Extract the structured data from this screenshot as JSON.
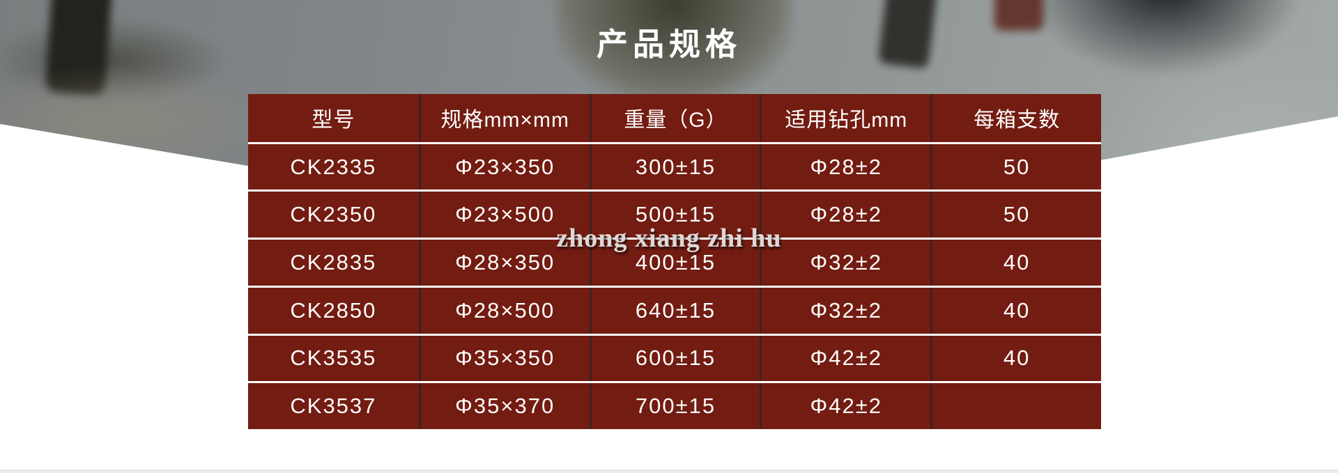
{
  "page": {
    "title": "产品规格",
    "watermark": "zhong xiang zhi hu",
    "colors": {
      "table_cell_red": "#731c11",
      "row_separator": "#ffffff",
      "column_separator": "#2c2622",
      "table_text": "#ffffff",
      "title_text": "#ffffff",
      "watermark_text": "#dcd8d6",
      "lower_background": "#ffffff"
    }
  },
  "table": {
    "header": [
      "型号",
      "规格mm×mm",
      "重量（G）",
      "适用钻孔mm",
      "每箱支数"
    ],
    "rows": [
      [
        "CK2335",
        "Φ23×350",
        "300±15",
        "Φ28±2",
        "50"
      ],
      [
        "CK2350",
        "Φ23×500",
        "500±15",
        "Φ28±2",
        "50"
      ],
      [
        "CK2835",
        "Φ28×350",
        "400±15",
        "Φ32±2",
        "40"
      ],
      [
        "CK2850",
        "Φ28×500",
        "640±15",
        "Φ32±2",
        "40"
      ],
      [
        "CK3535",
        "Φ35×350",
        "600±15",
        "Φ42±2",
        "40"
      ],
      [
        "CK3537",
        "Φ35×370",
        "700±15",
        "Φ42±2",
        ""
      ]
    ]
  }
}
